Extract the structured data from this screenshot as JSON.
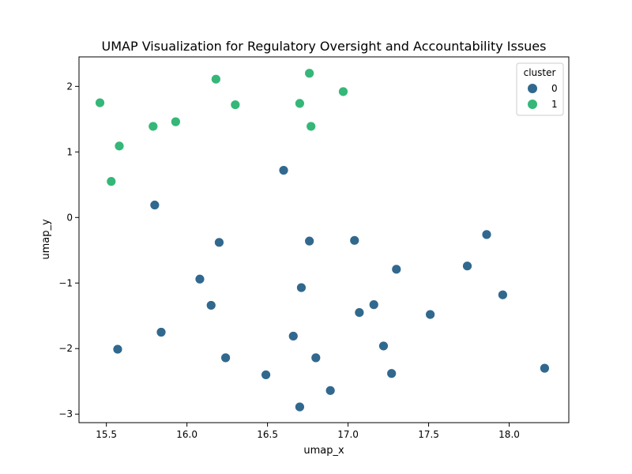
{
  "chart_data": {
    "type": "scatter",
    "title": "UMAP Visualization for Regulatory Oversight and Accountability Issues",
    "xlabel": "umap_x",
    "ylabel": "umap_y",
    "xlim": [
      15.33,
      18.37
    ],
    "ylim": [
      -3.13,
      2.45
    ],
    "xticks": [
      15.5,
      16.0,
      16.5,
      17.0,
      17.5,
      18.0
    ],
    "xtick_labels": [
      "15.5",
      "16.0",
      "16.5",
      "17.0",
      "17.5",
      "18.0"
    ],
    "yticks": [
      -3,
      -2,
      -1,
      0,
      1,
      2
    ],
    "ytick_labels": [
      "−3",
      "−2",
      "−1",
      "0",
      "1",
      "2"
    ],
    "grid": false,
    "legend": {
      "title": "cluster",
      "position": "top-right",
      "entries": [
        "0",
        "1"
      ]
    },
    "series": [
      {
        "name": "0",
        "color": "#31688e",
        "points": [
          {
            "x": 16.6,
            "y": 0.72
          },
          {
            "x": 15.8,
            "y": 0.19
          },
          {
            "x": 16.2,
            "y": -0.38
          },
          {
            "x": 16.76,
            "y": -0.36
          },
          {
            "x": 17.04,
            "y": -0.35
          },
          {
            "x": 17.86,
            "y": -0.26
          },
          {
            "x": 17.3,
            "y": -0.79
          },
          {
            "x": 17.74,
            "y": -0.74
          },
          {
            "x": 16.08,
            "y": -0.94
          },
          {
            "x": 16.71,
            "y": -1.07
          },
          {
            "x": 17.96,
            "y": -1.18
          },
          {
            "x": 16.15,
            "y": -1.34
          },
          {
            "x": 17.16,
            "y": -1.33
          },
          {
            "x": 17.07,
            "y": -1.45
          },
          {
            "x": 17.51,
            "y": -1.48
          },
          {
            "x": 15.84,
            "y": -1.75
          },
          {
            "x": 16.66,
            "y": -1.81
          },
          {
            "x": 15.57,
            "y": -2.01
          },
          {
            "x": 17.22,
            "y": -1.96
          },
          {
            "x": 16.24,
            "y": -2.14
          },
          {
            "x": 16.8,
            "y": -2.14
          },
          {
            "x": 16.49,
            "y": -2.4
          },
          {
            "x": 17.27,
            "y": -2.38
          },
          {
            "x": 18.22,
            "y": -2.3
          },
          {
            "x": 16.89,
            "y": -2.64
          },
          {
            "x": 16.7,
            "y": -2.89
          }
        ]
      },
      {
        "name": "1",
        "color": "#35b779",
        "points": [
          {
            "x": 15.46,
            "y": 1.75
          },
          {
            "x": 16.18,
            "y": 2.11
          },
          {
            "x": 16.76,
            "y": 2.2
          },
          {
            "x": 16.3,
            "y": 1.72
          },
          {
            "x": 16.7,
            "y": 1.74
          },
          {
            "x": 16.97,
            "y": 1.92
          },
          {
            "x": 15.93,
            "y": 1.46
          },
          {
            "x": 15.79,
            "y": 1.39
          },
          {
            "x": 16.77,
            "y": 1.39
          },
          {
            "x": 15.58,
            "y": 1.09
          },
          {
            "x": 15.53,
            "y": 0.55
          }
        ]
      }
    ]
  }
}
